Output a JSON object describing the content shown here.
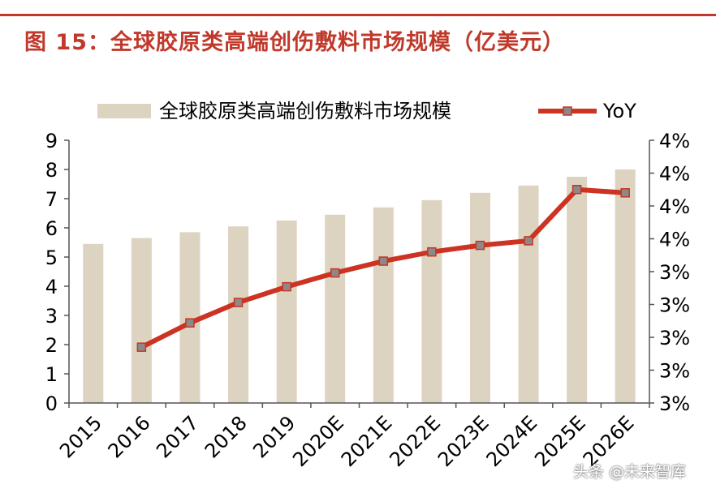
{
  "figure": {
    "title": "图 15：全球胶原类高端创伤敷料市场规模（亿美元）",
    "watermark": "头条 @未来智库"
  },
  "colors": {
    "bar": "#ddd3c1",
    "line": "#cc3322",
    "marker": "#8a8a8a",
    "title": "#c0392b"
  },
  "chart_data": {
    "type": "bar",
    "categories": [
      "2015",
      "2016",
      "2017",
      "2018",
      "2019",
      "2020E",
      "2021E",
      "2022E",
      "2023E",
      "2024E",
      "2025E",
      "2026E"
    ],
    "series": [
      {
        "name": "全球胶原类高端创伤敷料市场规模",
        "type": "bar",
        "axis": "left",
        "values": [
          5.45,
          5.65,
          5.85,
          6.05,
          6.25,
          6.45,
          6.7,
          6.95,
          7.2,
          7.45,
          7.75,
          8.0
        ]
      },
      {
        "name": "YoY",
        "type": "line",
        "axis": "right",
        "values": [
          null,
          2.85,
          3.22,
          3.53,
          3.77,
          3.98,
          4.16,
          4.3,
          4.4,
          4.47,
          5.25,
          5.2
        ]
      }
    ],
    "y_left": {
      "ylim": [
        0,
        9
      ],
      "ticks": [
        "0",
        "1",
        "2",
        "3",
        "4",
        "5",
        "6",
        "7",
        "8",
        "9"
      ]
    },
    "y_right": {
      "ylim": [
        2.0,
        6.0
      ],
      "ticks": [
        "3%",
        "3%",
        "3%",
        "3%",
        "3%",
        "4%",
        "4%",
        "4%",
        "4%"
      ]
    },
    "legend_position": "top",
    "grid": false
  }
}
